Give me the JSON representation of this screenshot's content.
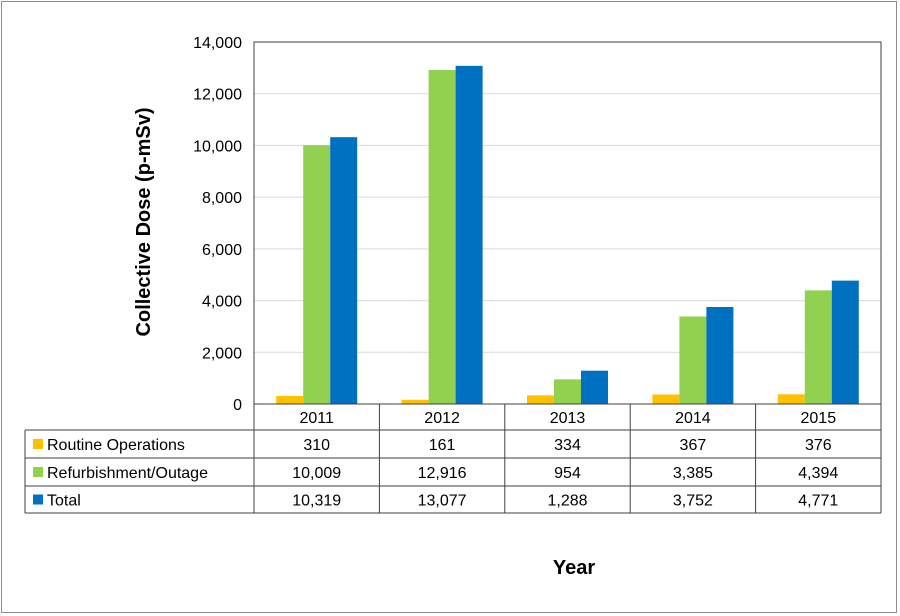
{
  "chart_data": {
    "type": "bar",
    "categories": [
      "2011",
      "2012",
      "2013",
      "2014",
      "2015"
    ],
    "series": [
      {
        "name": "Routine Operations",
        "color": "#FFC000",
        "values": [
          310,
          161,
          334,
          367,
          376
        ],
        "labels": [
          "310",
          "161",
          "334",
          "367",
          "376"
        ]
      },
      {
        "name": "Refurbishment/Outage",
        "color": "#92D050",
        "values": [
          10009,
          12916,
          954,
          3385,
          4394
        ],
        "labels": [
          "10,009",
          "12,916",
          "954",
          "3,385",
          "4,394"
        ]
      },
      {
        "name": "Total",
        "color": "#0070C0",
        "values": [
          10319,
          13077,
          1288,
          3752,
          4771
        ],
        "labels": [
          "10,319",
          "13,077",
          "1,288",
          "3,752",
          "4,771"
        ]
      }
    ],
    "ylabel": "Collective Dose (p-mSv)",
    "xlabel": "Year",
    "ylim": [
      0,
      14000
    ],
    "yticks": [
      "0",
      "2,000",
      "4,000",
      "6,000",
      "8,000",
      "10,000",
      "12,000",
      "14,000"
    ],
    "grid": true,
    "legend": "data-table"
  }
}
